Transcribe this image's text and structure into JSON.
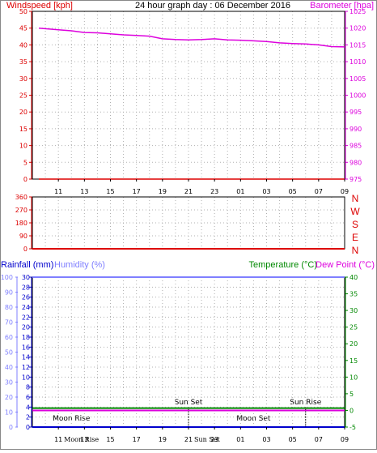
{
  "header": {
    "windspeed_label": "Windspeed [kph]",
    "title": "24 hour graph day : 06 December 2016",
    "barometer_label": "Barometer [hpa]"
  },
  "middle": {
    "wind_direction_letters": [
      "N",
      "W",
      "S",
      "E",
      "N"
    ]
  },
  "bottom_header": {
    "rainfall_label": "Rainfall (mm)",
    "humidity_label": "Humidity (%)",
    "temperature_label": "Temperature (°C)",
    "dew_point_label": "Dew Point (°C)"
  },
  "events": {
    "above": [
      {
        "label": "Sun Set",
        "time": "21"
      },
      {
        "label": "Sun Rise",
        "time": "06"
      }
    ],
    "below": [
      {
        "label": "Moon Rise",
        "time": "12"
      },
      {
        "label": "Moon Set",
        "time": "02"
      }
    ]
  },
  "colors": {
    "wind": "#dd0000",
    "barometer": "#dd00dd",
    "rainfall": "#0000cc",
    "humidity": "#7f7fff",
    "temperature": "#008800",
    "dew_point": "#dd00dd",
    "grid": "#b0b0b0",
    "axis": "#000000"
  },
  "chart_data": [
    {
      "type": "line",
      "name": "wind-barometer",
      "x_tick_labels": [
        "11",
        "13",
        "15",
        "17",
        "19",
        "21",
        "23",
        "01",
        "03",
        "05",
        "07",
        "09"
      ],
      "y_left": {
        "label": "Windspeed [kph]",
        "ticks": [
          0,
          5,
          10,
          15,
          20,
          25,
          30,
          35,
          40,
          45,
          50
        ],
        "ylim": [
          0,
          50
        ]
      },
      "y_right": {
        "label": "Barometer [hpa]",
        "ticks": [
          975,
          980,
          985,
          990,
          995,
          1000,
          1005,
          1010,
          1015,
          1020,
          1025
        ],
        "ylim": [
          975,
          1025
        ]
      },
      "x_hours": [
        9.5,
        11,
        12,
        13,
        14,
        15,
        16,
        17,
        18,
        19,
        20,
        21,
        22,
        23,
        24,
        25,
        26,
        27,
        28,
        29,
        30,
        31,
        32,
        33
      ],
      "series": [
        {
          "name": "Barometer [hpa]",
          "axis": "right",
          "values": [
            1020.0,
            1019.5,
            1019.2,
            1018.7,
            1018.6,
            1018.3,
            1018.0,
            1017.8,
            1017.6,
            1016.8,
            1016.6,
            1016.5,
            1016.6,
            1016.8,
            1016.5,
            1016.4,
            1016.2,
            1016.0,
            1015.6,
            1015.4,
            1015.3,
            1015.0,
            1014.5,
            1014.4
          ]
        },
        {
          "name": "Windspeed [kph]",
          "axis": "left",
          "values": [
            0,
            0,
            0,
            0,
            0,
            0,
            0,
            0,
            0,
            0,
            0,
            0,
            0,
            0,
            0,
            0,
            0,
            0,
            0,
            0,
            0,
            0,
            0,
            0
          ]
        }
      ],
      "grid": true
    },
    {
      "type": "line",
      "name": "wind-direction",
      "x_tick_labels": [
        "11",
        "13",
        "15",
        "17",
        "19",
        "21",
        "23",
        "01",
        "03",
        "05",
        "07",
        "09"
      ],
      "y_left": {
        "ticks": [
          0,
          90,
          180,
          270,
          360
        ],
        "ylim": [
          0,
          360
        ]
      },
      "series": [
        {
          "name": "Wind direction",
          "values": [
            0,
            0
          ]
        }
      ],
      "grid": true
    },
    {
      "type": "line",
      "name": "rain-humidity-temperature",
      "x_tick_labels": [
        "11",
        "13",
        "15",
        "17",
        "19",
        "21",
        "23",
        "01",
        "03",
        "05",
        "07",
        "09"
      ],
      "y_rain": {
        "label": "Rainfall (mm)",
        "ticks": [
          0,
          2,
          4,
          6,
          8,
          10,
          12,
          14,
          16,
          18,
          20,
          22,
          24,
          26,
          28,
          30
        ],
        "ylim": [
          0,
          30
        ]
      },
      "y_humidity": {
        "label": "Humidity (%)",
        "ticks": [
          0,
          10,
          20,
          30,
          40,
          50,
          60,
          70,
          80,
          90,
          100
        ],
        "ylim": [
          0,
          100
        ]
      },
      "y_temperature": {
        "label": "Temperature (°C)",
        "ticks": [
          -5,
          0,
          5,
          10,
          15,
          20,
          25,
          30,
          35,
          40
        ],
        "ylim": [
          -5,
          40
        ]
      },
      "series": [
        {
          "name": "Humidity (%)",
          "axis": "humidity",
          "values": [
            100,
            100
          ]
        },
        {
          "name": "Temperature (°C)",
          "axis": "temperature",
          "values": [
            0.7,
            0.7
          ]
        },
        {
          "name": "Dew Point (°C)",
          "axis": "temperature",
          "values": [
            0.0,
            0.0
          ]
        },
        {
          "name": "Rainfall (mm)",
          "axis": "rain",
          "values": [
            0,
            0
          ]
        }
      ],
      "grid": true
    }
  ]
}
